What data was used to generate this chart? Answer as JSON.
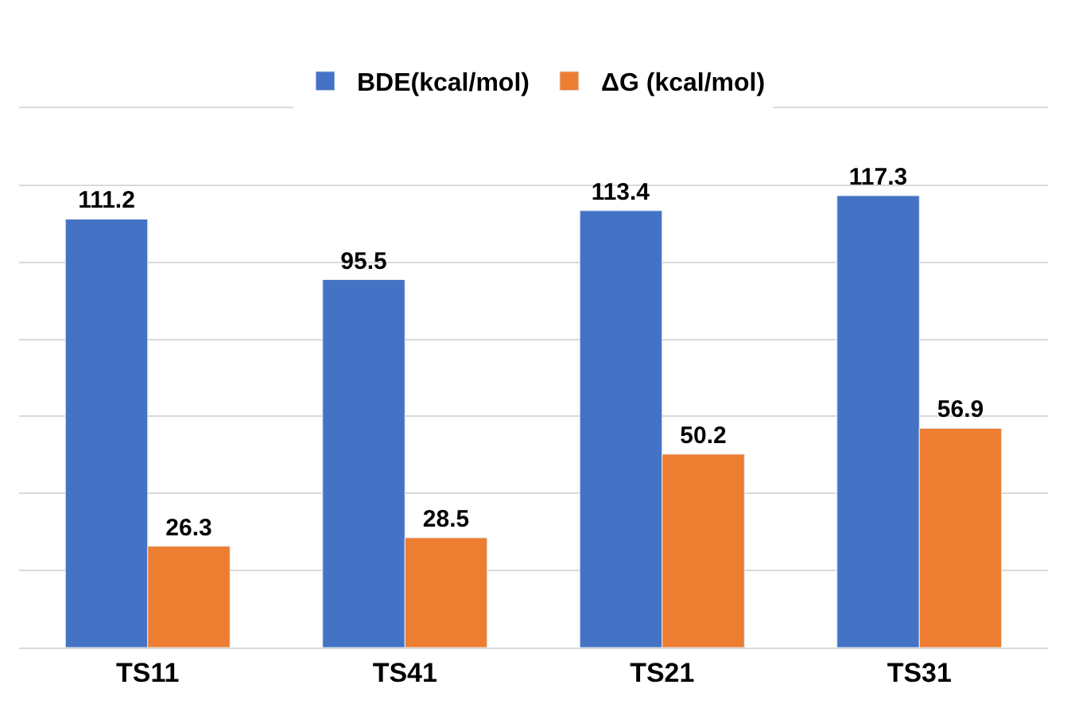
{
  "chart_data": {
    "type": "bar",
    "categories": [
      "TS11",
      "TS41",
      "TS21",
      "TS31"
    ],
    "series": [
      {
        "name": "BDE(kcal/mol)",
        "color": "#4472c4",
        "values": [
          111.2,
          95.5,
          113.4,
          117.3
        ]
      },
      {
        "name": "ΔG (kcal/mol)",
        "color": "#ed7d31",
        "values": [
          26.3,
          28.5,
          50.2,
          56.9
        ]
      }
    ],
    "data_labels": true,
    "ylim": [
      0,
      140
    ],
    "yticks": [
      {
        "value": 0,
        "label": null
      },
      {
        "value": 20,
        "label": null
      },
      {
        "value": 40,
        "label": null
      },
      {
        "value": 60,
        "label": null
      },
      {
        "value": 80,
        "label": null
      },
      {
        "value": 100,
        "label": null
      },
      {
        "value": 120,
        "label": null
      },
      {
        "value": 140,
        "label": null
      }
    ],
    "grid": "y",
    "legend": "top",
    "tick_labels": "x"
  }
}
